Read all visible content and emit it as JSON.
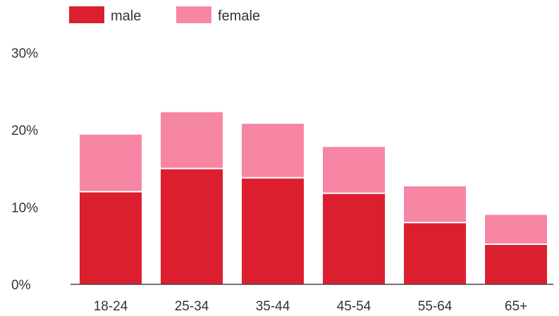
{
  "chart_data": {
    "type": "bar",
    "stacked": true,
    "categories": [
      "18-24",
      "25-34",
      "35-44",
      "45-54",
      "55-64",
      "65+"
    ],
    "series": [
      {
        "name": "male",
        "color": "#dc1f2e",
        "values": [
          12,
          15,
          13.8,
          11.8,
          8,
          5.2
        ]
      },
      {
        "name": "female",
        "color": "#f786a4",
        "values": [
          7.4,
          7.3,
          7,
          6,
          4.7,
          3.8
        ]
      }
    ],
    "y_ticks": [
      0,
      10,
      20,
      30
    ],
    "y_tick_labels": [
      "0%",
      "10%",
      "20%",
      "30%"
    ],
    "ylim": [
      0,
      30
    ],
    "grid": false,
    "legend_position": "top-left"
  }
}
